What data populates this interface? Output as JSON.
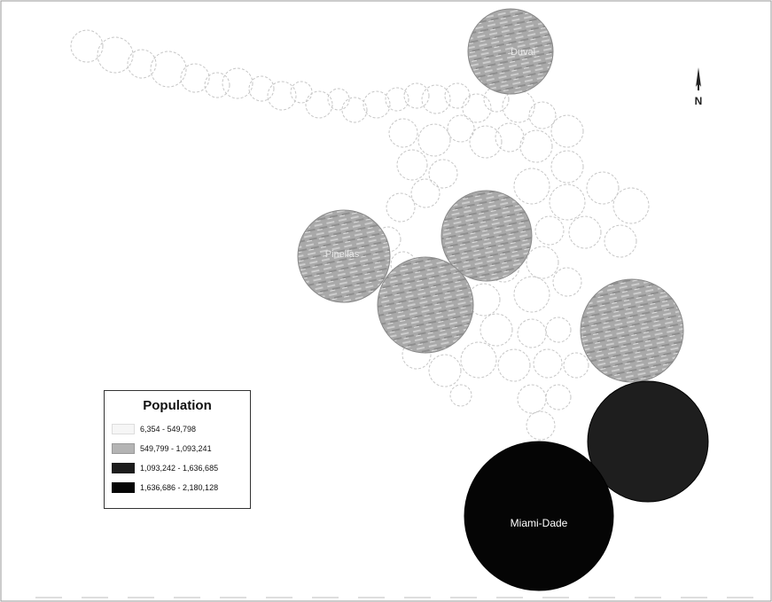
{
  "map": {
    "legend": {
      "title": "Population",
      "classes": [
        {
          "label": "6,354 - 549,798",
          "color": "#f2f2f2"
        },
        {
          "label": "549,799 - 1,093,241",
          "color": "#b4b4b4"
        },
        {
          "label": "1,093,242 - 1,636,685",
          "color": "#1c1c1c"
        },
        {
          "label": "1,636,686 - 2,180,128",
          "color": "#050505"
        }
      ]
    },
    "city_labels": {
      "duval": "Duval",
      "pinellas": "Pinellas",
      "miami_dade": "Miami-Dade"
    },
    "north_arrow": {
      "label": "N",
      "icon": "north-arrow-icon"
    },
    "colors": {
      "class1_outline": "#c8c8c8",
      "class2_fill": "#a8a8a8",
      "class3_fill": "#1e1e1e",
      "class4_fill": "#050505"
    }
  }
}
